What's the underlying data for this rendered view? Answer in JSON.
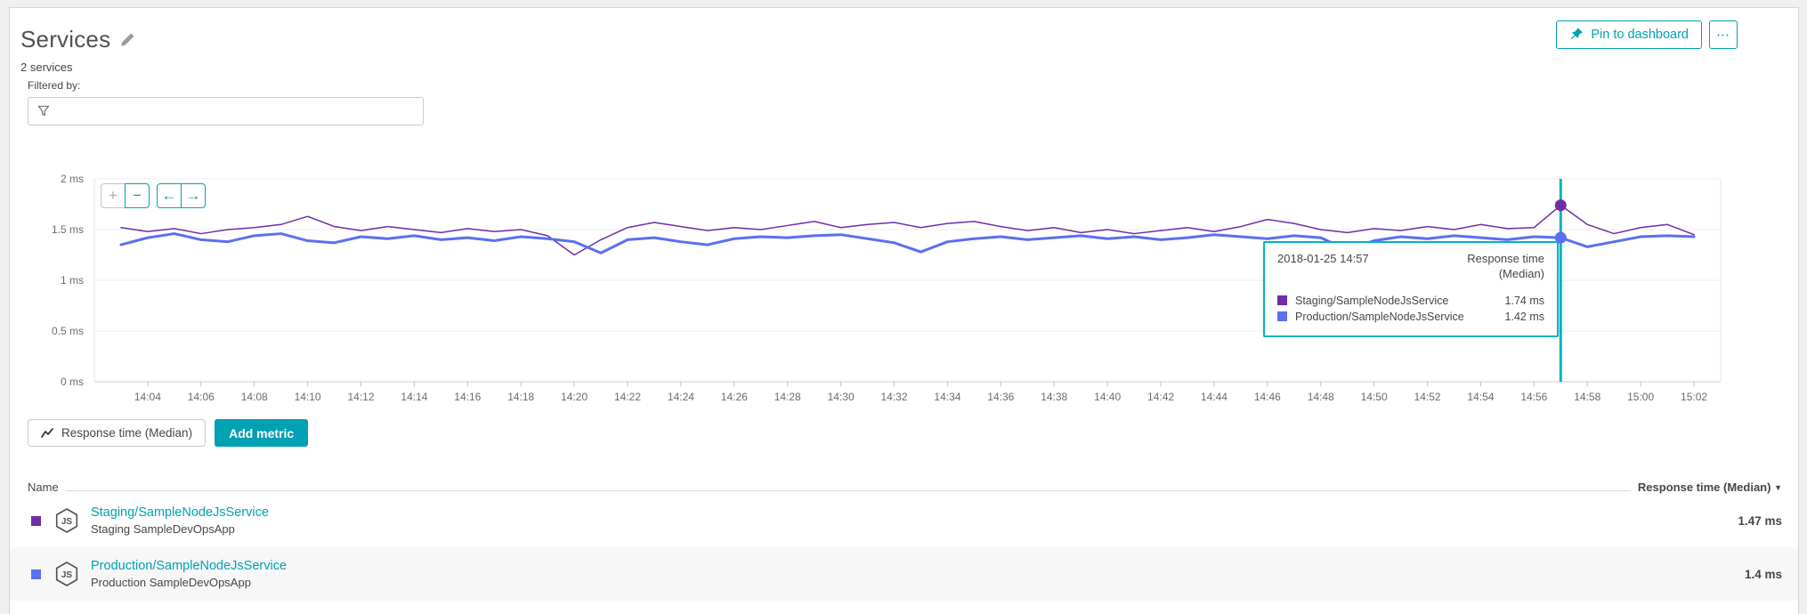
{
  "page": {
    "title": "Services",
    "subtitle": "2 services"
  },
  "header": {
    "pin_button": "Pin to dashboard",
    "more_button": "⋯"
  },
  "filter": {
    "label": "Filtered by:",
    "value": ""
  },
  "chart_controls": {
    "zoom_in": "+",
    "zoom_out": "−",
    "pan_left": "←",
    "pan_right": "→"
  },
  "tooltip": {
    "timestamp": "2018-01-25 14:57",
    "metric_line1": "Response time",
    "metric_line2": "(Median)",
    "rows": [
      {
        "name": "Staging/SampleNodeJsService",
        "value": "1.74 ms",
        "color": "#6f2da8"
      },
      {
        "name": "Production/SampleNodeJsService",
        "value": "1.42 ms",
        "color": "#5b6ff0"
      }
    ]
  },
  "metric_bar": {
    "metric_button": "Response time (Median)",
    "add_metric_button": "Add metric"
  },
  "table": {
    "name_header": "Name",
    "value_header": "Response time (Median)",
    "sort_icon": "▼",
    "rows": [
      {
        "color": "#6f2da8",
        "name": "Staging/SampleNodeJsService",
        "app": "Staging SampleDevOpsApp",
        "value": "1.47 ms"
      },
      {
        "color": "#5b6ff0",
        "name": "Production/SampleNodeJsService",
        "app": "Production SampleDevOpsApp",
        "value": "1.4 ms"
      }
    ]
  },
  "colors": {
    "accent": "#00a1b2",
    "cursor": "#00b4c4",
    "grid": "#ececec"
  },
  "chart_data": {
    "type": "line",
    "title": "",
    "xlabel": "",
    "ylabel": "",
    "ylim": [
      0,
      2
    ],
    "grid": true,
    "legend_position": "none",
    "y_ticks": [
      "0 ms",
      "0.5 ms",
      "1 ms",
      "1.5 ms",
      "2 ms"
    ],
    "x_tick_labels": [
      "14:04",
      "14:06",
      "14:08",
      "14:10",
      "14:12",
      "14:14",
      "14:16",
      "14:18",
      "14:20",
      "14:22",
      "14:24",
      "14:26",
      "14:28",
      "14:30",
      "14:32",
      "14:34",
      "14:36",
      "14:38",
      "14:40",
      "14:42",
      "14:44",
      "14:46",
      "14:48",
      "14:50",
      "14:52",
      "14:54",
      "14:56",
      "14:58",
      "15:00",
      "15:02"
    ],
    "x": [
      "14:03",
      "14:04",
      "14:05",
      "14:06",
      "14:07",
      "14:08",
      "14:09",
      "14:10",
      "14:11",
      "14:12",
      "14:13",
      "14:14",
      "14:15",
      "14:16",
      "14:17",
      "14:18",
      "14:19",
      "14:20",
      "14:21",
      "14:22",
      "14:23",
      "14:24",
      "14:25",
      "14:26",
      "14:27",
      "14:28",
      "14:29",
      "14:30",
      "14:31",
      "14:32",
      "14:33",
      "14:34",
      "14:35",
      "14:36",
      "14:37",
      "14:38",
      "14:39",
      "14:40",
      "14:41",
      "14:42",
      "14:43",
      "14:44",
      "14:45",
      "14:46",
      "14:47",
      "14:48",
      "14:49",
      "14:50",
      "14:51",
      "14:52",
      "14:53",
      "14:54",
      "14:55",
      "14:56",
      "14:57",
      "14:58",
      "14:59",
      "15:00",
      "15:01",
      "15:02"
    ],
    "series": [
      {
        "name": "Staging/SampleNodeJsService",
        "color": "#6f2da8",
        "width": 1.5,
        "values": [
          1.52,
          1.48,
          1.51,
          1.46,
          1.5,
          1.52,
          1.55,
          1.63,
          1.53,
          1.49,
          1.53,
          1.5,
          1.47,
          1.51,
          1.48,
          1.5,
          1.44,
          1.25,
          1.4,
          1.52,
          1.57,
          1.53,
          1.49,
          1.52,
          1.5,
          1.54,
          1.58,
          1.52,
          1.55,
          1.57,
          1.52,
          1.56,
          1.58,
          1.53,
          1.49,
          1.52,
          1.47,
          1.5,
          1.46,
          1.49,
          1.52,
          1.48,
          1.53,
          1.6,
          1.56,
          1.5,
          1.47,
          1.51,
          1.49,
          1.53,
          1.5,
          1.55,
          1.51,
          1.52,
          1.74,
          1.55,
          1.46,
          1.52,
          1.55,
          1.45
        ]
      },
      {
        "name": "Production/SampleNodeJsService",
        "color": "#5b6ff0",
        "width": 3,
        "values": [
          1.35,
          1.42,
          1.46,
          1.4,
          1.38,
          1.44,
          1.46,
          1.39,
          1.37,
          1.43,
          1.41,
          1.44,
          1.4,
          1.42,
          1.39,
          1.43,
          1.41,
          1.38,
          1.27,
          1.4,
          1.42,
          1.38,
          1.35,
          1.41,
          1.43,
          1.42,
          1.44,
          1.45,
          1.41,
          1.37,
          1.28,
          1.38,
          1.41,
          1.43,
          1.4,
          1.42,
          1.44,
          1.41,
          1.43,
          1.4,
          1.42,
          1.45,
          1.43,
          1.41,
          1.44,
          1.42,
          1.3,
          1.39,
          1.43,
          1.41,
          1.44,
          1.42,
          1.4,
          1.43,
          1.42,
          1.33,
          1.38,
          1.43,
          1.44,
          1.43
        ]
      }
    ],
    "cursor": {
      "x": "14:57",
      "index": 54,
      "color": "#00b4c4"
    }
  }
}
